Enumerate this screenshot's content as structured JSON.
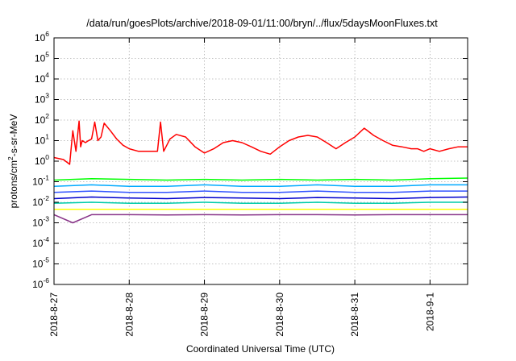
{
  "chart_data": {
    "type": "line",
    "title": "/data/run/goesPlots/archive/2018-09-01/11:00/bryn/../flux/5daysMoonFluxes.txt",
    "xlabel": "Coordinated Universal Time (UTC)",
    "ylabel": "protons/cm2-s-sr-MeV",
    "ylabel_parts": {
      "before": "protons/cm",
      "sup": "2",
      "after": "-s-sr-MeV"
    },
    "yscale": "log",
    "ylim": [
      1e-06,
      1000000.0
    ],
    "xlim": [
      "2018-08-27 00:00",
      "2018-09-01 12:00"
    ],
    "grid": true,
    "x_ticks": [
      "2018-08-27",
      "2018-08-28",
      "2018-08-29",
      "2018-08-30",
      "2018-08-31",
      "2018-09-01"
    ],
    "x_tick_labels": [
      "2018-8-27",
      "2018-8-28",
      "2018-8-29",
      "2018-8-30",
      "2018-8-31",
      "2018-9-1"
    ],
    "y_tick_labels": [
      {
        "base": "10",
        "exp": "6"
      },
      {
        "base": "10",
        "exp": "5"
      },
      {
        "base": "10",
        "exp": "4"
      },
      {
        "base": "10",
        "exp": "3"
      },
      {
        "base": "10",
        "exp": "2"
      },
      {
        "base": "10",
        "exp": "1"
      },
      {
        "base": "10",
        "exp": "0"
      },
      {
        "base": "10",
        "exp": "-1"
      },
      {
        "base": "10",
        "exp": "-2"
      },
      {
        "base": "10",
        "exp": "-3"
      },
      {
        "base": "10",
        "exp": "-4"
      },
      {
        "base": "10",
        "exp": "-5"
      },
      {
        "base": "10",
        "exp": "-6"
      }
    ],
    "series": [
      {
        "color": "#ff0000",
        "x": [
          "2018-08-27 00:00",
          "2018-08-27 03:00",
          "2018-08-27 05:00",
          "2018-08-27 06:00",
          "2018-08-27 07:00",
          "2018-08-27 08:00",
          "2018-08-27 08:30",
          "2018-08-27 09:00",
          "2018-08-27 10:00",
          "2018-08-27 11:00",
          "2018-08-27 12:00",
          "2018-08-27 13:00",
          "2018-08-27 14:00",
          "2018-08-27 15:00",
          "2018-08-27 16:00",
          "2018-08-27 18:00",
          "2018-08-27 20:00",
          "2018-08-27 22:00",
          "2018-08-28 00:00",
          "2018-08-28 03:00",
          "2018-08-28 06:00",
          "2018-08-28 09:00",
          "2018-08-28 10:00",
          "2018-08-28 11:00",
          "2018-08-28 12:00",
          "2018-08-28 13:00",
          "2018-08-28 15:00",
          "2018-08-28 18:00",
          "2018-08-28 21:00",
          "2018-08-29 00:00",
          "2018-08-29 03:00",
          "2018-08-29 06:00",
          "2018-08-29 09:00",
          "2018-08-29 12:00",
          "2018-08-29 15:00",
          "2018-08-29 18:00",
          "2018-08-29 21:00",
          "2018-08-30 00:00",
          "2018-08-30 03:00",
          "2018-08-30 06:00",
          "2018-08-30 09:00",
          "2018-08-30 12:00",
          "2018-08-30 15:00",
          "2018-08-30 18:00",
          "2018-08-30 21:00",
          "2018-08-31 00:00",
          "2018-08-31 03:00",
          "2018-08-31 06:00",
          "2018-08-31 09:00",
          "2018-08-31 12:00",
          "2018-08-31 15:00",
          "2018-08-31 18:00",
          "2018-08-31 20:00",
          "2018-08-31 22:00",
          "2018-09-01 00:00",
          "2018-09-01 03:00",
          "2018-09-01 06:00",
          "2018-09-01 09:00",
          "2018-09-01 12:00"
        ],
        "values": [
          1.5,
          1.2,
          0.7,
          30,
          3,
          90,
          5,
          10,
          8,
          10,
          12,
          80,
          10,
          15,
          70,
          30,
          12,
          6,
          4,
          3,
          3,
          3,
          80,
          3,
          6,
          12,
          20,
          15,
          5,
          2.5,
          4,
          8,
          10,
          8,
          5,
          3,
          2.2,
          5,
          10,
          15,
          18,
          15,
          8,
          4,
          8,
          15,
          40,
          18,
          10,
          6,
          5,
          4,
          4,
          3,
          4,
          3,
          4,
          5,
          5
        ]
      },
      {
        "color": "#00ff00",
        "x": [
          "2018-08-27 00:00",
          "2018-08-27 12:00",
          "2018-08-28 00:00",
          "2018-08-28 12:00",
          "2018-08-29 00:00",
          "2018-08-29 12:00",
          "2018-08-30 00:00",
          "2018-08-30 12:00",
          "2018-08-31 00:00",
          "2018-08-31 12:00",
          "2018-09-01 00:00",
          "2018-09-01 12:00"
        ],
        "values": [
          0.12,
          0.14,
          0.13,
          0.12,
          0.13,
          0.12,
          0.13,
          0.12,
          0.13,
          0.12,
          0.14,
          0.15
        ]
      },
      {
        "color": "#00aaff",
        "x": [
          "2018-08-27 00:00",
          "2018-08-27 12:00",
          "2018-08-28 00:00",
          "2018-08-28 12:00",
          "2018-08-29 00:00",
          "2018-08-29 12:00",
          "2018-08-30 00:00",
          "2018-08-30 12:00",
          "2018-08-31 00:00",
          "2018-08-31 12:00",
          "2018-09-01 00:00",
          "2018-09-01 12:00"
        ],
        "values": [
          0.06,
          0.07,
          0.06,
          0.06,
          0.07,
          0.06,
          0.06,
          0.07,
          0.06,
          0.06,
          0.07,
          0.07
        ]
      },
      {
        "color": "#3355ff",
        "x": [
          "2018-08-27 00:00",
          "2018-08-27 12:00",
          "2018-08-28 00:00",
          "2018-08-28 12:00",
          "2018-08-29 00:00",
          "2018-08-29 12:00",
          "2018-08-30 00:00",
          "2018-08-30 12:00",
          "2018-08-31 00:00",
          "2018-08-31 12:00",
          "2018-09-01 00:00",
          "2018-09-01 12:00"
        ],
        "values": [
          0.03,
          0.035,
          0.03,
          0.03,
          0.035,
          0.03,
          0.03,
          0.035,
          0.03,
          0.03,
          0.035,
          0.035
        ]
      },
      {
        "color": "#0000cc",
        "x": [
          "2018-08-27 00:00",
          "2018-08-27 12:00",
          "2018-08-28 00:00",
          "2018-08-28 12:00",
          "2018-08-29 00:00",
          "2018-08-29 12:00",
          "2018-08-30 00:00",
          "2018-08-30 12:00",
          "2018-08-31 00:00",
          "2018-08-31 12:00",
          "2018-09-01 00:00",
          "2018-09-01 12:00"
        ],
        "values": [
          0.015,
          0.018,
          0.016,
          0.015,
          0.017,
          0.016,
          0.015,
          0.017,
          0.016,
          0.015,
          0.017,
          0.018
        ]
      },
      {
        "color": "#00ccaa",
        "x": [
          "2018-08-27 00:00",
          "2018-08-27 12:00",
          "2018-08-28 00:00",
          "2018-08-28 12:00",
          "2018-08-29 00:00",
          "2018-08-29 12:00",
          "2018-08-30 00:00",
          "2018-08-30 12:00",
          "2018-08-31 00:00",
          "2018-08-31 12:00",
          "2018-09-01 00:00",
          "2018-09-01 12:00"
        ],
        "values": [
          0.009,
          0.01,
          0.009,
          0.009,
          0.01,
          0.009,
          0.009,
          0.01,
          0.009,
          0.009,
          0.01,
          0.01
        ]
      },
      {
        "color": "#ffff00",
        "x": [
          "2018-08-27 00:00",
          "2018-08-27 12:00",
          "2018-08-28 00:00",
          "2018-08-28 12:00",
          "2018-08-29 00:00",
          "2018-08-29 12:00",
          "2018-08-30 00:00",
          "2018-08-30 12:00",
          "2018-08-31 00:00",
          "2018-08-31 12:00",
          "2018-09-01 00:00",
          "2018-09-01 12:00"
        ],
        "values": [
          0.0045,
          0.0045,
          0.0045,
          0.0045,
          0.0045,
          0.0045,
          0.0045,
          0.0045,
          0.0045,
          0.0045,
          0.0045,
          0.0045
        ]
      },
      {
        "color": "#883388",
        "x": [
          "2018-08-27 00:00",
          "2018-08-27 06:00",
          "2018-08-27 12:00",
          "2018-08-28 00:00",
          "2018-08-28 12:00",
          "2018-08-29 00:00",
          "2018-08-29 12:00",
          "2018-08-30 00:00",
          "2018-08-30 12:00",
          "2018-08-31 00:00",
          "2018-08-31 12:00",
          "2018-09-01 00:00",
          "2018-09-01 12:00"
        ],
        "values": [
          0.0025,
          0.001,
          0.0025,
          0.0025,
          0.0024,
          0.0025,
          0.0024,
          0.0025,
          0.0025,
          0.0024,
          0.0025,
          0.0025,
          0.0025
        ]
      }
    ]
  }
}
